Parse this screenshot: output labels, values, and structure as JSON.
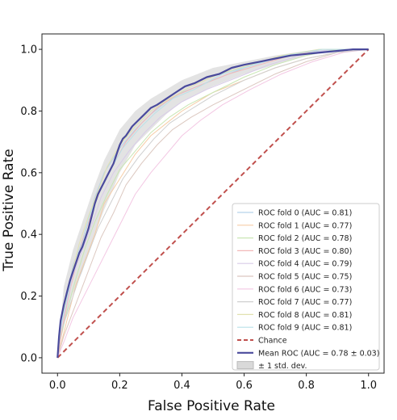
{
  "chart_data": {
    "type": "line",
    "xlabel": "False Positive Rate",
    "ylabel": "True Positive Rate",
    "xlim": [
      -0.05,
      1.05
    ],
    "ylim": [
      -0.05,
      1.05
    ],
    "xticks": [
      "0.0",
      "0.2",
      "0.4",
      "0.6",
      "0.8",
      "1.0"
    ],
    "yticks": [
      "0.0",
      "0.2",
      "0.4",
      "0.6",
      "0.8",
      "1.0"
    ],
    "legend_position": "lower-right",
    "grid": false,
    "series": [
      {
        "name": "ROC fold 0 (AUC = 0.81)",
        "color": "#b8d3ea",
        "x": [
          0,
          0.01,
          0.03,
          0.05,
          0.08,
          0.1,
          0.12,
          0.15,
          0.2,
          0.25,
          0.3,
          0.35,
          0.4,
          0.5,
          0.6,
          0.7,
          0.8,
          0.9,
          1.0
        ],
        "y": [
          0,
          0.1,
          0.2,
          0.3,
          0.38,
          0.45,
          0.52,
          0.6,
          0.68,
          0.74,
          0.79,
          0.83,
          0.86,
          0.9,
          0.94,
          0.97,
          0.99,
          1.0,
          1.0
        ]
      },
      {
        "name": "ROC fold 1 (AUC = 0.77)",
        "color": "#f6cda6",
        "x": [
          0,
          0.02,
          0.04,
          0.06,
          0.09,
          0.12,
          0.15,
          0.2,
          0.25,
          0.3,
          0.35,
          0.4,
          0.5,
          0.6,
          0.7,
          0.8,
          0.9,
          1.0
        ],
        "y": [
          0,
          0.08,
          0.16,
          0.24,
          0.32,
          0.4,
          0.5,
          0.58,
          0.66,
          0.72,
          0.76,
          0.8,
          0.86,
          0.9,
          0.94,
          0.97,
          0.99,
          1.0
        ]
      },
      {
        "name": "ROC fold 2 (AUC = 0.78)",
        "color": "#c9e6b4",
        "x": [
          0,
          0.01,
          0.03,
          0.06,
          0.09,
          0.12,
          0.16,
          0.2,
          0.25,
          0.3,
          0.36,
          0.42,
          0.5,
          0.6,
          0.7,
          0.8,
          0.9,
          1.0
        ],
        "y": [
          0,
          0.06,
          0.15,
          0.26,
          0.36,
          0.44,
          0.53,
          0.61,
          0.67,
          0.73,
          0.78,
          0.82,
          0.86,
          0.91,
          0.95,
          0.98,
          1.0,
          1.0
        ]
      },
      {
        "name": "ROC fold 3 (AUC = 0.80)",
        "color": "#f2b8b8",
        "x": [
          0,
          0.02,
          0.04,
          0.06,
          0.08,
          0.11,
          0.14,
          0.18,
          0.22,
          0.27,
          0.32,
          0.38,
          0.45,
          0.55,
          0.65,
          0.75,
          0.85,
          1.0
        ],
        "y": [
          0,
          0.12,
          0.22,
          0.3,
          0.38,
          0.47,
          0.55,
          0.63,
          0.7,
          0.76,
          0.81,
          0.85,
          0.88,
          0.92,
          0.95,
          0.98,
          1.0,
          1.0
        ]
      },
      {
        "name": "ROC fold 4 (AUC = 0.79)",
        "color": "#d8cbe8",
        "x": [
          0,
          0.01,
          0.03,
          0.05,
          0.08,
          0.11,
          0.14,
          0.18,
          0.23,
          0.28,
          0.33,
          0.4,
          0.48,
          0.58,
          0.68,
          0.78,
          0.88,
          1.0
        ],
        "y": [
          0,
          0.09,
          0.18,
          0.27,
          0.35,
          0.43,
          0.52,
          0.6,
          0.67,
          0.73,
          0.78,
          0.83,
          0.87,
          0.91,
          0.95,
          0.98,
          1.0,
          1.0
        ]
      },
      {
        "name": "ROC fold 5 (AUC = 0.75)",
        "color": "#dcc8c0",
        "x": [
          0,
          0.02,
          0.05,
          0.08,
          0.11,
          0.14,
          0.18,
          0.22,
          0.27,
          0.32,
          0.37,
          0.43,
          0.5,
          0.6,
          0.7,
          0.8,
          0.9,
          1.0
        ],
        "y": [
          0,
          0.07,
          0.15,
          0.23,
          0.31,
          0.39,
          0.47,
          0.56,
          0.63,
          0.69,
          0.74,
          0.78,
          0.82,
          0.87,
          0.92,
          0.96,
          0.99,
          1.0
        ]
      },
      {
        "name": "ROC fold 6 (AUC = 0.73)",
        "color": "#f3c7e3",
        "x": [
          0,
          0.02,
          0.05,
          0.09,
          0.13,
          0.17,
          0.21,
          0.25,
          0.3,
          0.35,
          0.4,
          0.46,
          0.53,
          0.62,
          0.72,
          0.82,
          0.92,
          1.0
        ],
        "y": [
          0,
          0.05,
          0.13,
          0.21,
          0.29,
          0.37,
          0.45,
          0.53,
          0.6,
          0.66,
          0.72,
          0.77,
          0.82,
          0.87,
          0.92,
          0.96,
          0.99,
          1.0
        ]
      },
      {
        "name": "ROC fold 7 (AUC = 0.77)",
        "color": "#cfcfcf",
        "x": [
          0,
          0.01,
          0.04,
          0.07,
          0.1,
          0.13,
          0.17,
          0.21,
          0.26,
          0.31,
          0.36,
          0.42,
          0.5,
          0.6,
          0.7,
          0.8,
          0.9,
          1.0
        ],
        "y": [
          0,
          0.08,
          0.17,
          0.26,
          0.34,
          0.42,
          0.5,
          0.58,
          0.65,
          0.71,
          0.76,
          0.8,
          0.85,
          0.9,
          0.94,
          0.97,
          0.99,
          1.0
        ]
      },
      {
        "name": "ROC fold 8 (AUC = 0.81)",
        "color": "#e2e2b0",
        "x": [
          0,
          0.01,
          0.03,
          0.05,
          0.07,
          0.1,
          0.13,
          0.16,
          0.2,
          0.25,
          0.3,
          0.36,
          0.43,
          0.52,
          0.62,
          0.72,
          0.84,
          1.0
        ],
        "y": [
          0,
          0.11,
          0.2,
          0.29,
          0.37,
          0.46,
          0.54,
          0.62,
          0.69,
          0.75,
          0.8,
          0.84,
          0.88,
          0.92,
          0.95,
          0.98,
          1.0,
          1.0
        ]
      },
      {
        "name": "ROC fold 9 (AUC = 0.81)",
        "color": "#b9e2e8",
        "x": [
          0,
          0.01,
          0.03,
          0.05,
          0.08,
          0.1,
          0.13,
          0.17,
          0.21,
          0.26,
          0.31,
          0.37,
          0.44,
          0.53,
          0.63,
          0.73,
          0.85,
          1.0
        ],
        "y": [
          0,
          0.1,
          0.19,
          0.28,
          0.37,
          0.45,
          0.53,
          0.61,
          0.68,
          0.74,
          0.79,
          0.84,
          0.87,
          0.92,
          0.95,
          0.98,
          1.0,
          1.0
        ]
      },
      {
        "name": "Chance",
        "color": "#c0504d",
        "dashed": true,
        "x": [
          0,
          1
        ],
        "y": [
          0,
          1
        ]
      },
      {
        "name": "Mean ROC (AUC = 0.78 ± 0.03)",
        "color": "#4a4a9c",
        "x": [
          0,
          0.005,
          0.01,
          0.02,
          0.03,
          0.04,
          0.05,
          0.06,
          0.07,
          0.08,
          0.09,
          0.1,
          0.11,
          0.12,
          0.13,
          0.14,
          0.15,
          0.16,
          0.17,
          0.18,
          0.19,
          0.2,
          0.21,
          0.22,
          0.24,
          0.26,
          0.28,
          0.3,
          0.32,
          0.35,
          0.38,
          0.41,
          0.44,
          0.48,
          0.52,
          0.56,
          0.6,
          0.65,
          0.7,
          0.75,
          0.8,
          0.85,
          0.9,
          0.95,
          1.0
        ],
        "y": [
          0,
          0.07,
          0.12,
          0.17,
          0.21,
          0.25,
          0.28,
          0.31,
          0.34,
          0.36,
          0.39,
          0.42,
          0.46,
          0.5,
          0.53,
          0.55,
          0.57,
          0.59,
          0.61,
          0.63,
          0.66,
          0.69,
          0.71,
          0.72,
          0.75,
          0.77,
          0.79,
          0.81,
          0.82,
          0.84,
          0.86,
          0.88,
          0.89,
          0.91,
          0.92,
          0.94,
          0.95,
          0.96,
          0.97,
          0.98,
          0.985,
          0.99,
          0.995,
          1.0,
          1.0
        ]
      }
    ],
    "band": {
      "name": "± 1 std. dev.",
      "color": "#d9d9d9",
      "x": [
        0,
        0.02,
        0.05,
        0.08,
        0.1,
        0.12,
        0.15,
        0.18,
        0.2,
        0.25,
        0.3,
        0.35,
        0.4,
        0.5,
        0.6,
        0.7,
        0.8,
        0.9,
        1.0
      ],
      "lower": [
        0,
        0.11,
        0.21,
        0.28,
        0.34,
        0.4,
        0.48,
        0.55,
        0.6,
        0.69,
        0.74,
        0.79,
        0.83,
        0.88,
        0.92,
        0.95,
        0.98,
        0.995,
        1.0
      ],
      "upper": [
        0,
        0.23,
        0.35,
        0.44,
        0.5,
        0.56,
        0.64,
        0.7,
        0.74,
        0.8,
        0.84,
        0.87,
        0.9,
        0.94,
        0.96,
        0.98,
        0.995,
        1.0,
        1.0
      ]
    },
    "legend": [
      "ROC fold 0 (AUC = 0.81)",
      "ROC fold 1 (AUC = 0.77)",
      "ROC fold 2 (AUC = 0.78)",
      "ROC fold 3 (AUC = 0.80)",
      "ROC fold 4 (AUC = 0.79)",
      "ROC fold 5 (AUC = 0.75)",
      "ROC fold 6 (AUC = 0.73)",
      "ROC fold 7 (AUC = 0.77)",
      "ROC fold 8 (AUC = 0.81)",
      "ROC fold 9 (AUC = 0.81)",
      "Chance",
      "Mean ROC (AUC = 0.78 ± 0.03)",
      "± 1 std. dev."
    ]
  }
}
